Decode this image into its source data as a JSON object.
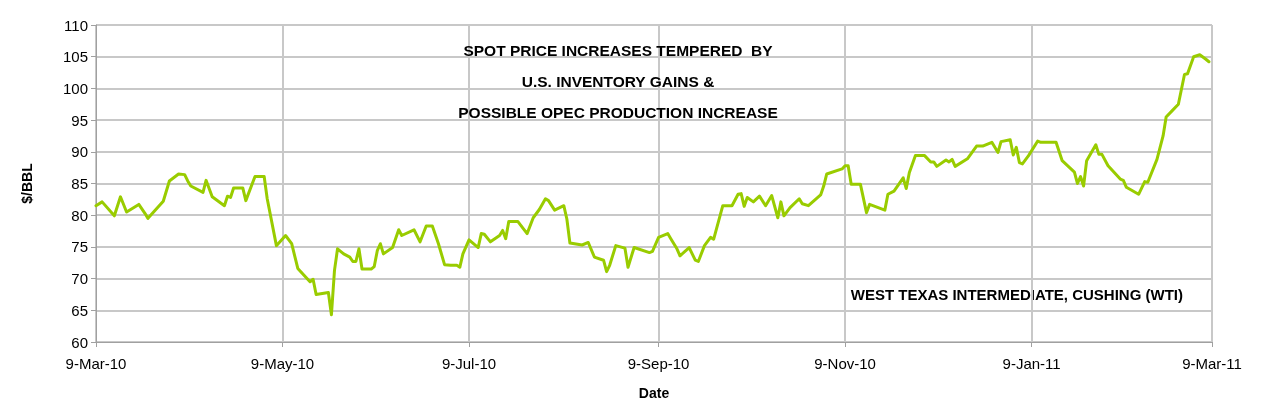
{
  "chart_data": {
    "type": "line",
    "title": "SPOT PRICE INCREASES TEMPERED  BY\nU.S. INVENTORY GAINS &\nPOSSIBLE OPEC PRODUCTION INCREASE",
    "xlabel": "Date",
    "ylabel": "$/BBL",
    "annotations": [
      "WEST TEXAS INTERMEDIATE, CUSHING (WTI)"
    ],
    "x": [
      "2010-03-09",
      "2010-03-11",
      "2010-03-15",
      "2010-03-17",
      "2010-03-19",
      "2010-03-23",
      "2010-03-25",
      "2010-03-26",
      "2010-03-31",
      "2010-04-02",
      "2010-04-05",
      "2010-04-07",
      "2010-04-08",
      "2010-04-09",
      "2010-04-13",
      "2010-04-14",
      "2010-04-16",
      "2010-04-20",
      "2010-04-21",
      "2010-04-22",
      "2010-04-23",
      "2010-04-26",
      "2010-04-27",
      "2010-04-30",
      "2010-05-03",
      "2010-05-04",
      "2010-05-07",
      "2010-05-10",
      "2010-05-12",
      "2010-05-14",
      "2010-05-18",
      "2010-05-19",
      "2010-05-20",
      "2010-05-24",
      "2010-05-25",
      "2010-05-26",
      "2010-05-27",
      "2010-05-29",
      "2010-05-31",
      "2010-06-01",
      "2010-06-02",
      "2010-06-03",
      "2010-06-04",
      "2010-06-07",
      "2010-06-08",
      "2010-06-09",
      "2010-06-10",
      "2010-06-11",
      "2010-06-14",
      "2010-06-16",
      "2010-06-17",
      "2010-06-21",
      "2010-06-23",
      "2010-06-25",
      "2010-06-27",
      "2010-06-29",
      "2010-07-01",
      "2010-07-03",
      "2010-07-05",
      "2010-07-06",
      "2010-07-07",
      "2010-07-09",
      "2010-07-12",
      "2010-07-13",
      "2010-07-14",
      "2010-07-16",
      "2010-07-19",
      "2010-07-20",
      "2010-07-21",
      "2010-07-22",
      "2010-07-25",
      "2010-07-28",
      "2010-07-30",
      "2010-08-01",
      "2010-08-03",
      "2010-08-04",
      "2010-08-06",
      "2010-08-09",
      "2010-08-10",
      "2010-08-11",
      "2010-08-15",
      "2010-08-17",
      "2010-08-19",
      "2010-08-22",
      "2010-08-23",
      "2010-08-24",
      "2010-08-26",
      "2010-08-29",
      "2010-08-30",
      "2010-09-01",
      "2010-09-06",
      "2010-09-07",
      "2010-09-09",
      "2010-09-12",
      "2010-09-13",
      "2010-09-15",
      "2010-09-16",
      "2010-09-19",
      "2010-09-21",
      "2010-09-22",
      "2010-09-24",
      "2010-09-26",
      "2010-09-27",
      "2010-09-30",
      "2010-10-03",
      "2010-10-05",
      "2010-10-06",
      "2010-10-07",
      "2010-10-08",
      "2010-10-10",
      "2010-10-12",
      "2010-10-14",
      "2010-10-16",
      "2010-10-18",
      "2010-10-19",
      "2010-10-20",
      "2010-10-22",
      "2010-10-25",
      "2010-10-26",
      "2010-10-28",
      "2010-11-01",
      "2010-11-02",
      "2010-11-03",
      "2010-11-08",
      "2010-11-09",
      "2010-11-10",
      "2010-11-11",
      "2010-11-14",
      "2010-11-16",
      "2010-11-17",
      "2010-11-22",
      "2010-11-23",
      "2010-11-25",
      "2010-11-28",
      "2010-11-29",
      "2010-11-30",
      "2010-12-02",
      "2010-12-05",
      "2010-12-07",
      "2010-12-08",
      "2010-12-09",
      "2010-12-12",
      "2010-12-13",
      "2010-12-14",
      "2010-12-15",
      "2010-12-19",
      "2010-12-22",
      "2010-12-24",
      "2010-12-27",
      "2010-12-29",
      "2010-12-30",
      "2011-01-02",
      "2011-01-03",
      "2011-01-04",
      "2011-01-05",
      "2011-01-06",
      "2011-01-08",
      "2011-01-11",
      "2011-01-12",
      "2011-01-17",
      "2011-01-19",
      "2011-01-23",
      "2011-01-24",
      "2011-01-25",
      "2011-01-26",
      "2011-01-27",
      "2011-01-30",
      "2011-01-31",
      "2011-02-01",
      "2011-02-03",
      "2011-02-07",
      "2011-02-08",
      "2011-02-09",
      "2011-02-13",
      "2011-02-15",
      "2011-02-16",
      "2011-02-19",
      "2011-02-21",
      "2011-02-22",
      "2011-02-24",
      "2011-02-26",
      "2011-02-28",
      "2011-03-01",
      "2011-03-03",
      "2011-03-05",
      "2011-03-07",
      "2011-03-08"
    ],
    "series": [
      {
        "color": "#99cc00",
        "values": [
          81.5,
          82.1,
          79.9,
          82.9,
          80.5,
          81.7,
          80.3,
          79.5,
          82.2,
          85.4,
          86.5,
          86.4,
          85.4,
          84.6,
          83.6,
          85.5,
          82.9,
          81.5,
          83.0,
          82.8,
          84.3,
          84.3,
          82.3,
          86.1,
          86.1,
          82.6,
          75.2,
          76.8,
          75.5,
          71.6,
          69.5,
          69.9,
          67.5,
          67.8,
          64.3,
          71.3,
          74.7,
          73.9,
          73.4,
          72.7,
          72.7,
          74.7,
          71.5,
          71.5,
          71.9,
          74.4,
          75.5,
          73.9,
          74.9,
          77.7,
          76.8,
          77.7,
          75.8,
          78.3,
          78.3,
          75.5,
          72.2,
          72.1,
          72.1,
          71.8,
          73.9,
          76.1,
          74.9,
          77.1,
          77.0,
          75.8,
          76.8,
          77.6,
          76.3,
          79.0,
          79.0,
          77.1,
          79.6,
          80.9,
          82.6,
          82.3,
          80.8,
          81.5,
          79.4,
          75.6,
          75.3,
          75.7,
          73.4,
          72.9,
          71.1,
          72.1,
          75.2,
          74.8,
          71.8,
          74.9,
          74.1,
          74.3,
          76.5,
          77.1,
          76.3,
          74.7,
          73.6,
          74.9,
          72.9,
          72.7,
          75.2,
          76.5,
          76.2,
          81.5,
          81.5,
          83.3,
          83.4,
          81.4,
          82.8,
          82.1,
          83.0,
          81.5,
          83.1,
          79.6,
          82.1,
          79.9,
          81.2,
          82.6,
          81.8,
          81.5,
          83.2,
          84.6,
          86.5,
          87.3,
          87.8,
          87.8,
          84.9,
          84.9,
          80.4,
          81.7,
          80.8,
          83.3,
          83.8,
          85.9,
          84.2,
          86.7,
          89.4,
          89.4,
          88.4,
          88.4,
          87.7,
          88.7,
          88.4,
          88.8,
          87.7,
          88.9,
          90.9,
          90.9,
          91.5,
          89.9,
          91.6,
          91.9,
          89.5,
          90.7,
          88.3,
          88.1,
          89.4,
          91.7,
          91.5,
          91.5,
          88.6,
          86.8,
          85.0,
          86.1,
          84.6,
          88.6,
          91.1,
          89.6,
          89.6,
          87.8,
          85.7,
          85.5,
          84.4,
          83.3,
          85.3,
          85.2,
          88.8,
          92.5,
          95.5,
          96.5,
          97.5,
          102.2,
          102.3,
          105.0,
          105.3,
          104.6,
          104.2
        ]
      }
    ],
    "xlim": [
      "2010-03-09",
      "2011-03-09"
    ],
    "xticks": [
      {
        "value": "2010-03-09",
        "label": "9-Mar-10"
      },
      {
        "value": "2010-05-09",
        "label": "9-May-10"
      },
      {
        "value": "2010-07-09",
        "label": "9-Jul-10"
      },
      {
        "value": "2010-09-09",
        "label": "9-Sep-10"
      },
      {
        "value": "2010-11-09",
        "label": "9-Nov-10"
      },
      {
        "value": "2011-01-09",
        "label": "9-Jan-11"
      },
      {
        "value": "2011-03-09",
        "label": "9-Mar-11"
      }
    ],
    "ylim": [
      60,
      110
    ],
    "yticks": [
      60,
      65,
      70,
      75,
      80,
      85,
      90,
      95,
      100,
      105,
      110
    ],
    "grid": true,
    "marker": "none",
    "line_style": "solid"
  }
}
